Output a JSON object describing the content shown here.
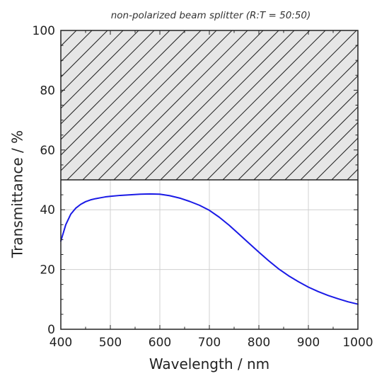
{
  "chart_data": {
    "type": "line",
    "title": "non-polarized beam splitter  (R:T = 50:50)",
    "xlabel": "Wavelength / nm",
    "ylabel": "Transmittance / %",
    "xlim": [
      400,
      1000
    ],
    "ylim": [
      0,
      100
    ],
    "x_ticks": [
      400,
      500,
      600,
      700,
      800,
      900,
      1000
    ],
    "x_tick_labels": [
      "400",
      "500",
      "600",
      "700",
      "800",
      "900",
      "1000"
    ],
    "y_ticks": [
      0,
      20,
      40,
      60,
      80,
      100
    ],
    "y_tick_labels": [
      "0",
      "20",
      "40",
      "60",
      "80",
      "100"
    ],
    "grid": true,
    "hatched_region": {
      "y_from": 50,
      "y_to": 100
    },
    "colors": {
      "line": "#1a1ae6",
      "grid": "#d0d0d0",
      "hatch_fill": "#e6e6e6",
      "hatch_line": "#222222",
      "axis": "#222222"
    },
    "series": [
      {
        "x": [
          400,
          410,
          420,
          430,
          440,
          450,
          460,
          470,
          480,
          490,
          500,
          520,
          540,
          560,
          580,
          600,
          620,
          640,
          660,
          680,
          700,
          720,
          740,
          760,
          780,
          800,
          820,
          840,
          860,
          880,
          900,
          920,
          940,
          960,
          980,
          1000
        ],
        "y": [
          29.5,
          35.0,
          38.5,
          40.5,
          41.8,
          42.7,
          43.3,
          43.7,
          44.0,
          44.3,
          44.5,
          44.8,
          45.0,
          45.2,
          45.3,
          45.2,
          44.7,
          43.9,
          42.8,
          41.5,
          39.8,
          37.5,
          34.8,
          31.8,
          28.8,
          25.8,
          22.9,
          20.2,
          17.9,
          15.9,
          14.1,
          12.6,
          11.3,
          10.2,
          9.2,
          8.4
        ]
      }
    ]
  }
}
